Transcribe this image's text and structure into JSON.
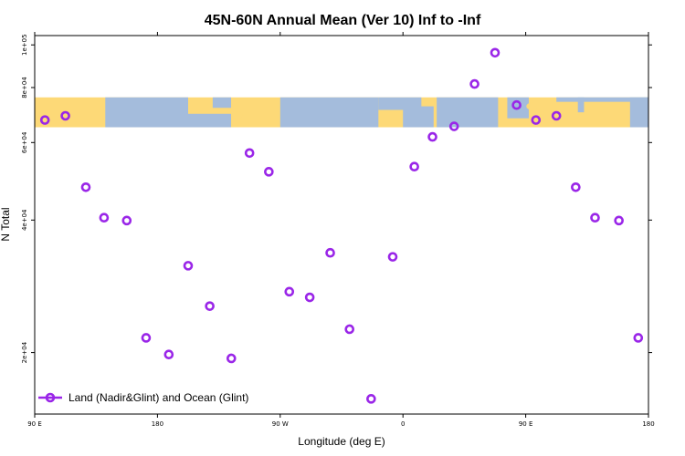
{
  "chart_data": {
    "type": "scatter",
    "title": "45N-60N Annual Mean (Ver 10)   Inf to -Inf",
    "xlabel": "Longitude (deg E)",
    "ylabel": "N Total",
    "y_scale": "log",
    "xlim": [
      -90,
      180
    ],
    "ylim": [
      14500,
      105000
    ],
    "x_ticks": [
      {
        "value": -90,
        "label": "90 E"
      },
      {
        "value": -36,
        "label": "180"
      },
      {
        "value": 18,
        "label": "90 W"
      },
      {
        "value": 72,
        "label": "0"
      },
      {
        "value": 126,
        "label": "90 E"
      },
      {
        "value": 180,
        "label": "180"
      }
    ],
    "y_ticks": [
      {
        "value": 20000,
        "label": "2e+04"
      },
      {
        "value": 40000,
        "label": "4e+04"
      },
      {
        "value": 60000,
        "label": "6e+04"
      },
      {
        "value": 80000,
        "label": "8e+04"
      },
      {
        "value": 100000,
        "label": "1e+05"
      }
    ],
    "map_band": {
      "description": "world map strip",
      "land_color": "#fdd977",
      "ocean_color": "#a4bcdc",
      "y_from": 65000,
      "y_to": 76000
    },
    "series": [
      {
        "name": "Land (Nadir&Glint) and Ocean (Glint)",
        "color": "#9a26e8",
        "marker": "open-circle",
        "points": [
          {
            "x": -85.5,
            "y": 67500
          },
          {
            "x": -76.5,
            "y": 69000
          },
          {
            "x": -67.5,
            "y": 47500
          },
          {
            "x": -59.5,
            "y": 40500
          },
          {
            "x": -49.5,
            "y": 39900
          },
          {
            "x": -41.0,
            "y": 21600
          },
          {
            "x": -31.0,
            "y": 19800
          },
          {
            "x": -22.5,
            "y": 31500
          },
          {
            "x": -13.0,
            "y": 25500
          },
          {
            "x": -3.5,
            "y": 19400
          },
          {
            "x": 4.5,
            "y": 56800
          },
          {
            "x": 13.0,
            "y": 51500
          },
          {
            "x": 22.0,
            "y": 27500
          },
          {
            "x": 31.0,
            "y": 26700
          },
          {
            "x": 40.0,
            "y": 33700
          },
          {
            "x": 48.5,
            "y": 22600
          },
          {
            "x": 58.0,
            "y": 15700
          },
          {
            "x": 67.5,
            "y": 33000
          },
          {
            "x": 77.0,
            "y": 52900
          },
          {
            "x": 94.5,
            "y": 65300
          },
          {
            "x": 85.0,
            "y": 61800
          },
          {
            "x": 103.5,
            "y": 81500
          },
          {
            "x": 112.5,
            "y": 96000
          },
          {
            "x": 122.0,
            "y": 73000
          },
          {
            "x": 130.5,
            "y": 67500
          },
          {
            "x": 139.5,
            "y": 69000
          },
          {
            "x": 148.0,
            "y": 47500
          },
          {
            "x": 156.5,
            "y": 40500
          },
          {
            "x": 167.0,
            "y": 39900
          },
          {
            "x": 175.5,
            "y": 21600
          }
        ]
      }
    ],
    "legend": {
      "placement": "bottom-left"
    }
  }
}
